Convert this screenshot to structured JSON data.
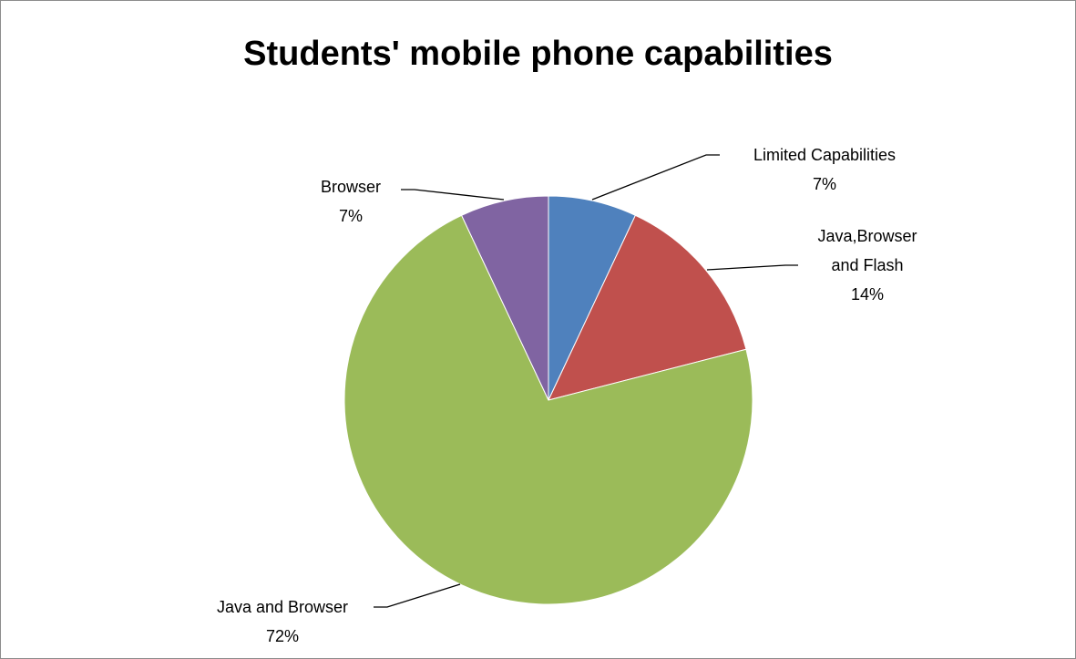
{
  "chart_data": {
    "type": "pie",
    "title": "Students' mobile phone capabilities",
    "slices": [
      {
        "label": "Limited Capabilities",
        "pct_label": "7%",
        "value": 7,
        "color": "#4F81BD"
      },
      {
        "label": "Java,Browser and Flash",
        "label_lines": [
          "Java,Browser",
          "and Flash"
        ],
        "pct_label": "14%",
        "value": 14,
        "color": "#C0504D"
      },
      {
        "label": "Java and Browser",
        "pct_label": "72%",
        "value": 72,
        "color": "#9BBB59"
      },
      {
        "label": "Browser",
        "pct_label": "7%",
        "value": 7,
        "color": "#8064A2"
      }
    ],
    "start": "12 o'clock",
    "direction": "clockwise",
    "legend": "none",
    "data_labels": "outside with leader lines"
  }
}
